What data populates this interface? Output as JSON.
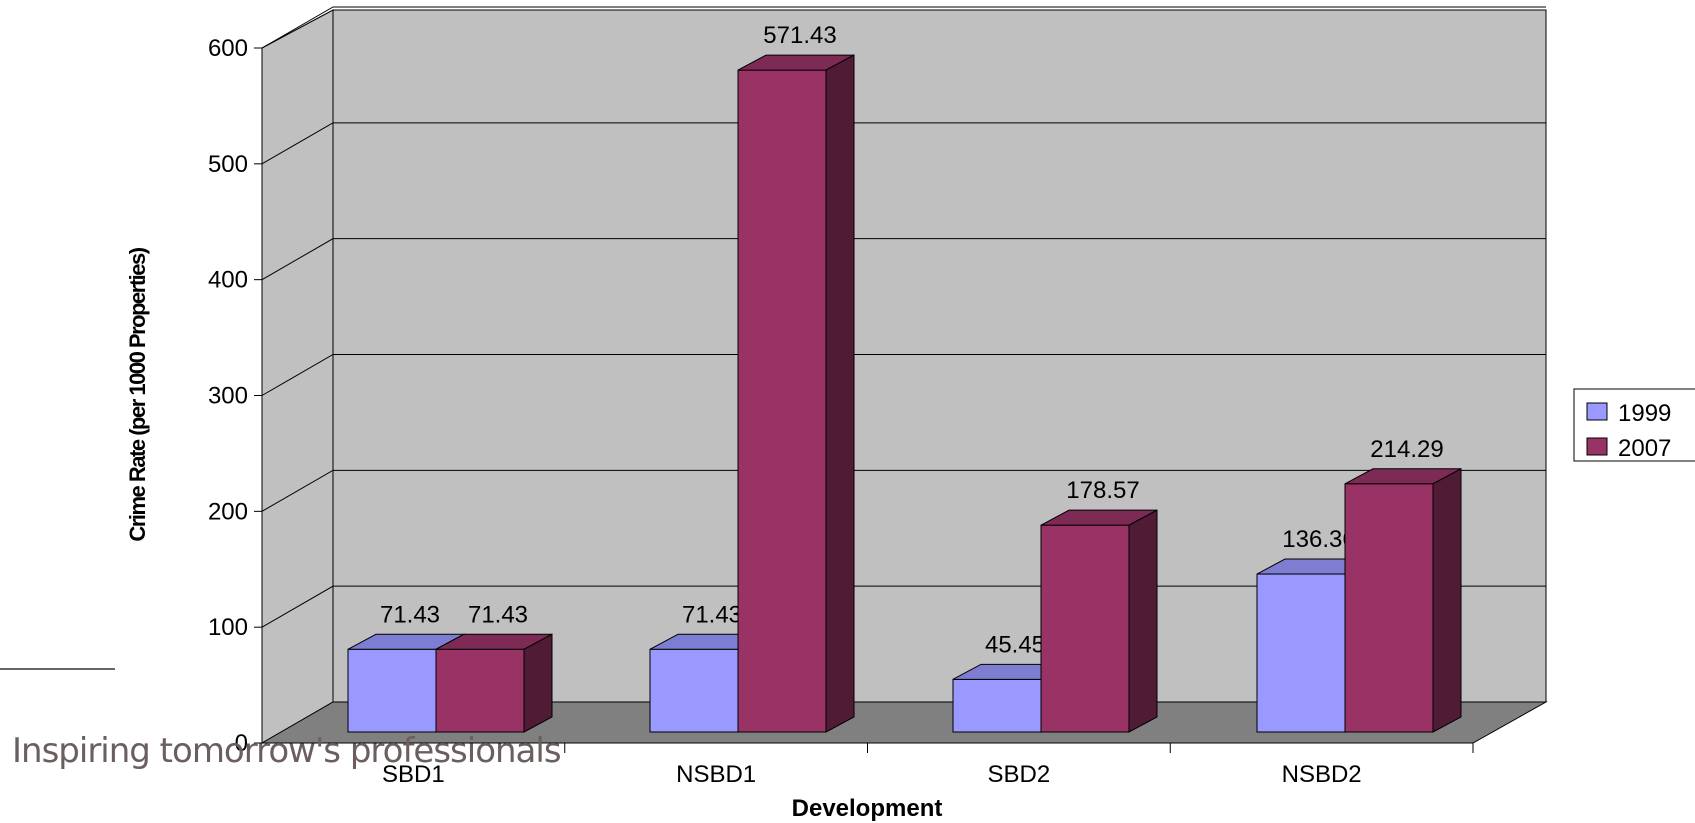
{
  "chart_data": {
    "type": "bar",
    "categories": [
      "SBD1",
      "NSBD1",
      "SBD2",
      "NSBD2"
    ],
    "series": [
      {
        "name": "1999",
        "values": [
          71.43,
          71.43,
          45.45,
          136.36
        ],
        "labels": [
          "71.43",
          "71.43",
          "45.45",
          "136.36"
        ]
      },
      {
        "name": "2007",
        "values": [
          71.43,
          571.43,
          178.57,
          214.29
        ],
        "labels": [
          "71.43",
          "571.43",
          "178.57",
          "214.29"
        ]
      }
    ],
    "xlabel": "Development",
    "ylabel": "Crime Rate (per 1000 Properties)",
    "ylim": [
      0,
      600
    ],
    "yticks": [
      0,
      100,
      200,
      300,
      400,
      500,
      600
    ],
    "grid": true,
    "legend_position": "right",
    "three_d": true
  },
  "colors": {
    "series_1999": "#9999ff",
    "series_2007": "#993366",
    "wall": "#c0c0c0",
    "floor": "#808080"
  },
  "footer": {
    "tagline": "Inspiring tomorrow's professionals"
  }
}
